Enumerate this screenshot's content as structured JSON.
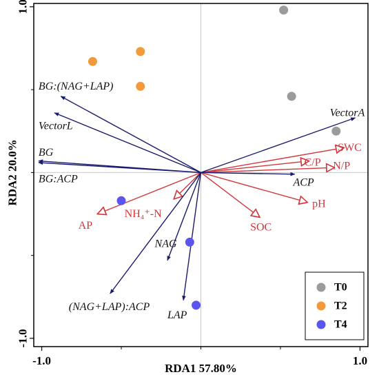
{
  "chart_data": {
    "type": "scatter",
    "subtype": "rda-biplot",
    "xlabel": "RDA1  57.80%",
    "ylabel": "RDA2  20.0%",
    "xlim": [
      -1.05,
      1.05
    ],
    "ylim": [
      -1.05,
      1.02
    ],
    "xticks": [
      {
        "value": -1.0,
        "label": "-1.0"
      },
      {
        "value": 1.0,
        "label": "1.0"
      }
    ],
    "yticks": [
      {
        "value": -1.0,
        "label": "-1.0"
      },
      {
        "value": 1.0,
        "label": "1.0"
      }
    ],
    "reference_lines": {
      "x": 0,
      "y": 0,
      "color": "#c8c8c8"
    },
    "legend": {
      "position": "bottom-right",
      "entries": [
        {
          "name": "T0",
          "color": "#9b9b9b"
        },
        {
          "name": "T2",
          "color": "#f29a3a"
        },
        {
          "name": "T4",
          "color": "#5b55f0"
        }
      ]
    },
    "samples": [
      {
        "group": "T0",
        "x": 0.52,
        "y": 0.98
      },
      {
        "group": "T0",
        "x": 0.57,
        "y": 0.46
      },
      {
        "group": "T0",
        "x": 0.85,
        "y": 0.25
      },
      {
        "group": "T2",
        "x": -0.68,
        "y": 0.67
      },
      {
        "group": "T2",
        "x": -0.38,
        "y": 0.73
      },
      {
        "group": "T2",
        "x": -0.38,
        "y": 0.52
      },
      {
        "group": "T4",
        "x": -0.5,
        "y": -0.17
      },
      {
        "group": "T4",
        "x": -0.07,
        "y": -0.42
      },
      {
        "group": "T4",
        "x": -0.03,
        "y": -0.8
      }
    ],
    "response_vectors": {
      "color": "#1a1a6e",
      "items": [
        {
          "name": "BG:(NAG+LAP)",
          "x": -0.88,
          "y": 0.46,
          "label_x": -1.02,
          "label_y": 0.52,
          "anchor": "start"
        },
        {
          "name": "VectorL",
          "x": -0.92,
          "y": 0.36,
          "label_x": -1.02,
          "label_y": 0.28,
          "anchor": "start"
        },
        {
          "name": "BG",
          "x": -1.02,
          "y": 0.07,
          "label_x": -1.02,
          "label_y": 0.12,
          "anchor": "start"
        },
        {
          "name": "BG:ACP",
          "x": -1.02,
          "y": 0.06,
          "label_x": -1.02,
          "label_y": -0.04,
          "anchor": "start"
        },
        {
          "name": "VectorA",
          "x": 0.97,
          "y": 0.33,
          "label_x": 0.81,
          "label_y": 0.36,
          "anchor": "start"
        },
        {
          "name": "ACP",
          "x": 0.59,
          "y": -0.01,
          "label_x": 0.58,
          "label_y": -0.06,
          "anchor": "start"
        },
        {
          "name": "NAG",
          "x": -0.21,
          "y": -0.53,
          "label_x": -0.29,
          "label_y": -0.43,
          "anchor": "start"
        },
        {
          "name": "(NAG+LAP):ACP",
          "x": -0.57,
          "y": -0.73,
          "label_x": -0.83,
          "label_y": -0.81,
          "anchor": "start"
        },
        {
          "name": "LAP",
          "x": -0.11,
          "y": -0.77,
          "label_x": -0.21,
          "label_y": -0.86,
          "anchor": "start"
        }
      ]
    },
    "environmental_vectors": {
      "color": "#d2363a",
      "items": [
        {
          "name": "SWC",
          "x": 0.9,
          "y": 0.15,
          "label_x": 0.86,
          "label_y": 0.15,
          "anchor": "start"
        },
        {
          "name": "C/P",
          "x": 0.68,
          "y": 0.07,
          "label_x": 0.65,
          "label_y": 0.06,
          "anchor": "start"
        },
        {
          "name": "N/P",
          "x": 0.84,
          "y": 0.03,
          "label_x": 0.83,
          "label_y": 0.04,
          "anchor": "start"
        },
        {
          "name": "pH",
          "x": 0.67,
          "y": -0.18,
          "label_x": 0.7,
          "label_y": -0.19,
          "anchor": "start"
        },
        {
          "name": "SOC",
          "x": 0.37,
          "y": -0.27,
          "label_x": 0.31,
          "label_y": -0.33,
          "anchor": "start"
        },
        {
          "name": "AP",
          "x": -0.65,
          "y": -0.25,
          "label_x": -0.77,
          "label_y": -0.32,
          "anchor": "start"
        },
        {
          "name": "NH₄⁺-N",
          "x": -0.17,
          "y": -0.16,
          "label_x": -0.48,
          "label_y": -0.25,
          "anchor": "start"
        }
      ]
    }
  }
}
